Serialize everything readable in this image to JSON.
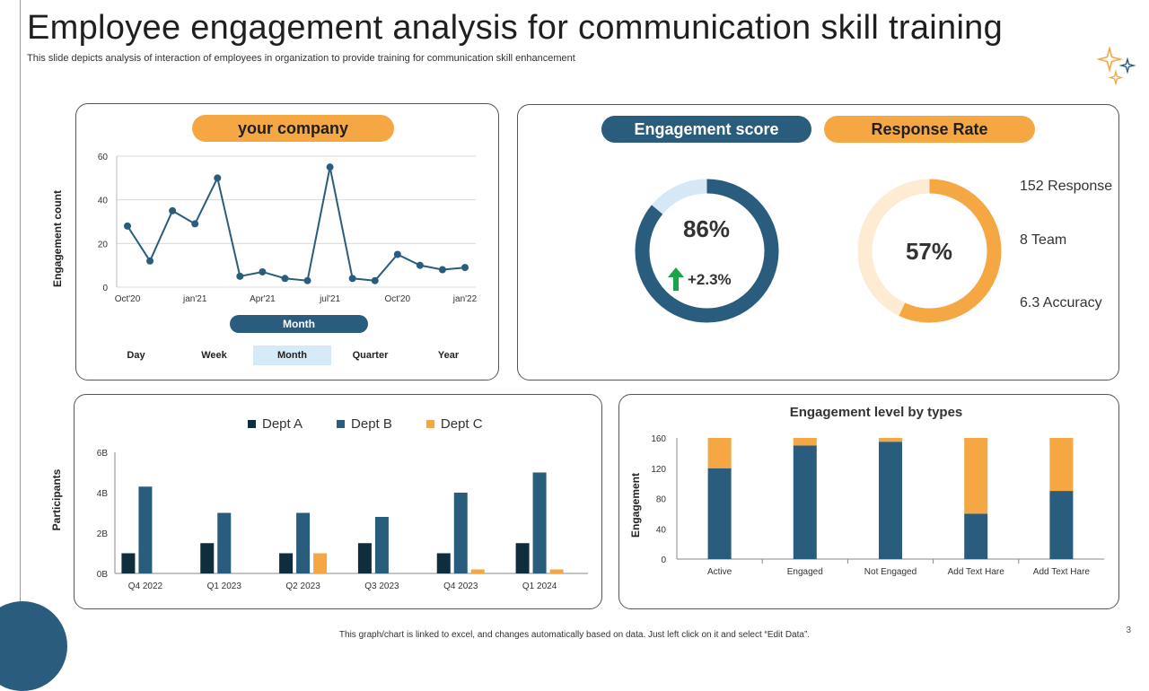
{
  "slide": {
    "title": "Employee engagement analysis for communication skill training",
    "subtitle": "This slide depicts analysis of interaction of employees in organization to provide training for communication skill enhancement",
    "footer": "This graph/chart is linked to excel, and changes automatically based on data. Just left click on it and select “Edit Data”.",
    "page_number": "3",
    "accent_orange": "#f4a742",
    "accent_blue": "#2a5c7e"
  },
  "line_panel": {
    "pill_label": "your company",
    "month_pill": "Month",
    "tabs": [
      "Day",
      "Week",
      "Month",
      "Quarter",
      "Year"
    ],
    "active_tab": 2
  },
  "score_panel": {
    "engagement_label": "Engagement score",
    "response_label": "Response Rate",
    "engagement_value": "86%",
    "engagement_change": "+2.3%",
    "response_value": "57%",
    "stats": [
      "152 Response",
      "8 Team",
      "6.3 Accuracy"
    ]
  },
  "chart_data": [
    {
      "type": "line",
      "ylabel": "Engagement count",
      "ylim": [
        0,
        60
      ],
      "yticks": [
        "0",
        "20",
        "40",
        "60"
      ],
      "x_tick_labels": [
        "Oct'20",
        "jan'21",
        "Apr'21",
        "jul'21",
        "Oct'20",
        "jan'22"
      ],
      "values": [
        28,
        12,
        35,
        29,
        50,
        5,
        7,
        4,
        3,
        55,
        4,
        3,
        15,
        10,
        8,
        9
      ],
      "grid": true
    },
    {
      "type": "bar",
      "ylabel": "Participants",
      "categories": [
        "Q4 2022",
        "Q1 2023",
        "Q2 2023",
        "Q3 2023",
        "Q4 2023",
        "Q1 2024"
      ],
      "ylim": [
        0,
        6
      ],
      "yticks": [
        "0B",
        "2B",
        "4B",
        "6B"
      ],
      "legend_position": "top",
      "series": [
        {
          "name": "Dept A",
          "color": "#0f2d3d",
          "values": [
            1,
            1.5,
            1,
            1.5,
            1,
            1.5
          ]
        },
        {
          "name": "Dept B",
          "color": "#2a5c7e",
          "values": [
            4.3,
            3,
            3,
            2.8,
            4,
            5
          ]
        },
        {
          "name": "Dept C",
          "color": "#f4a742",
          "values": [
            0,
            0,
            1,
            0,
            0.2,
            0.2
          ]
        }
      ]
    },
    {
      "type": "bar",
      "stacked": true,
      "title": "Engagement level by types",
      "ylabel": "Engagement",
      "categories": [
        "Active",
        "Engaged",
        "Not Engaged",
        "Add Text Hare",
        "Add Text Hare"
      ],
      "ylim": [
        0,
        160
      ],
      "yticks": [
        "0",
        "40",
        "80",
        "120",
        "160"
      ],
      "series": [
        {
          "color": "#2a5c7e",
          "values": [
            120,
            150,
            155,
            60,
            90
          ]
        },
        {
          "color": "#f4a742",
          "values": [
            40,
            10,
            5,
            100,
            70
          ]
        }
      ]
    },
    {
      "type": "pie",
      "variant": "donut",
      "label": "Engagement score",
      "values": [
        86,
        14
      ],
      "colors": [
        "#2a5c7e",
        "#d6e7f5"
      ]
    },
    {
      "type": "pie",
      "variant": "donut",
      "label": "Response Rate",
      "values": [
        57,
        43
      ],
      "colors": [
        "#f4a742",
        "#fdebd3"
      ]
    }
  ]
}
